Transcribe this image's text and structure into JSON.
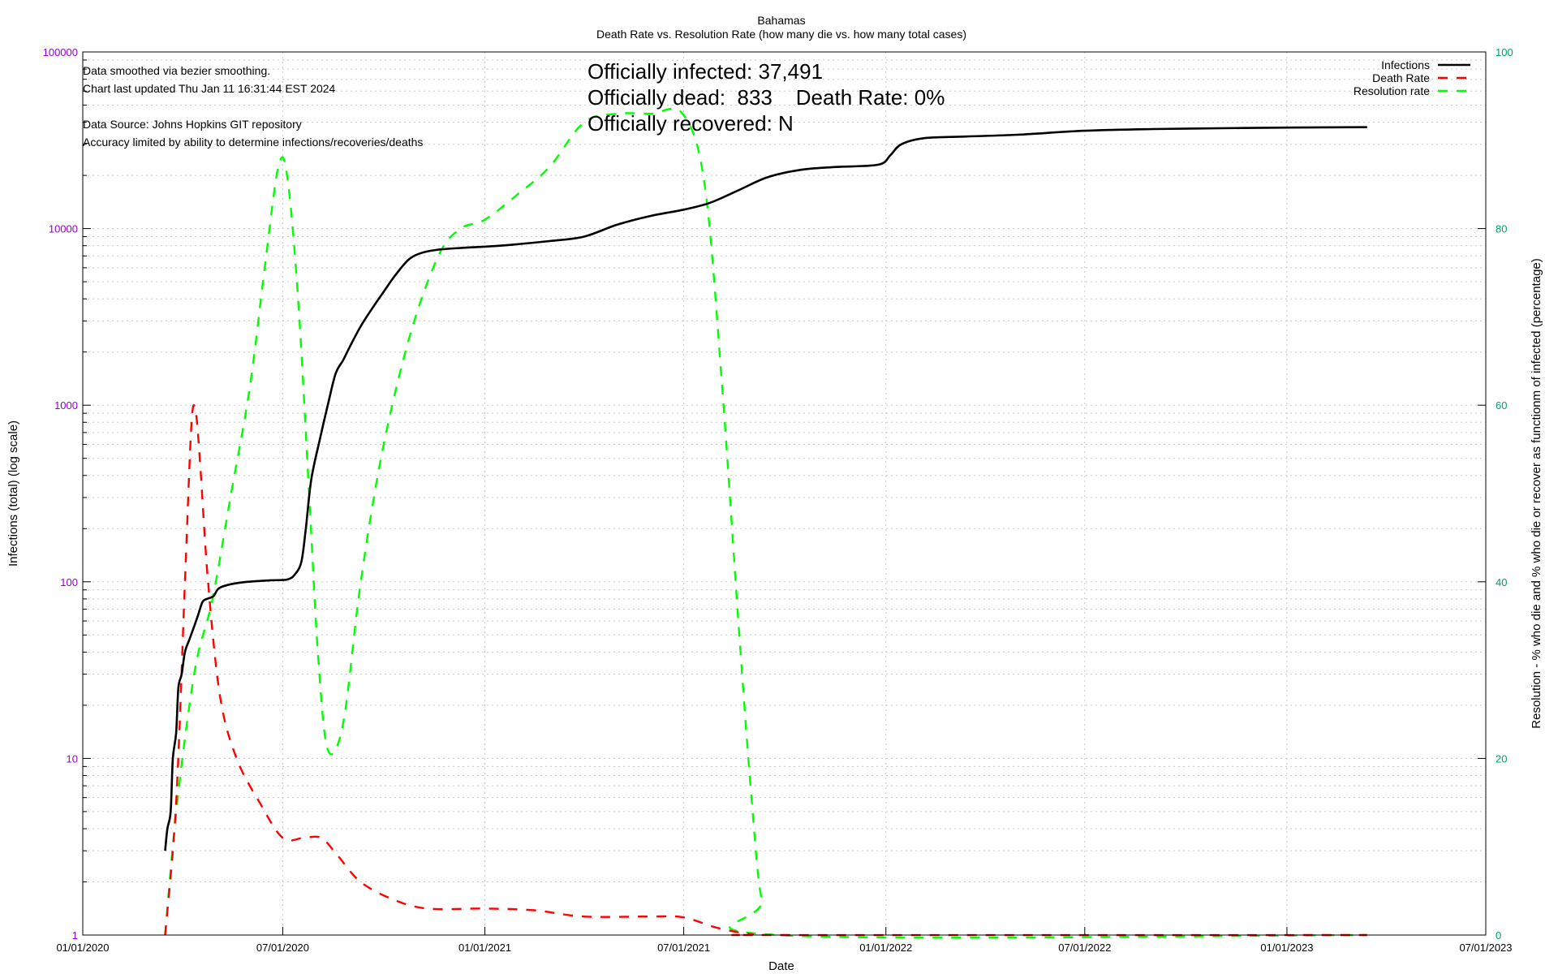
{
  "chart_data": {
    "type": "line",
    "title": "Bahamas",
    "subtitle": "Death Rate vs. Resolution Rate (how many die vs. how many total cases)",
    "xlabel": "Date",
    "ylabel": "Infections (total) (log scale)",
    "y2label": "Resolution - % who die and % who die or recover as functionm of infected (percentage)",
    "xlim": [
      "2020-01-01",
      "2023-07-01"
    ],
    "ylim": [
      1,
      100000
    ],
    "yscale": "log",
    "y2lim": [
      0,
      100
    ],
    "grid": true,
    "legend_position": "top-right",
    "x_ticks": [
      "01/01/2020",
      "07/01/2020",
      "01/01/2021",
      "07/01/2021",
      "01/01/2022",
      "07/01/2022",
      "01/01/2023",
      "07/01/2023"
    ],
    "y_ticks": [
      "1",
      "10",
      "100",
      "1000",
      "10000",
      "100000"
    ],
    "y2_ticks": [
      "0",
      "20",
      "40",
      "60",
      "80",
      "100"
    ],
    "notes": [
      "Data smoothed via bezier smoothing.",
      "Chart last updated Thu Jan 11 16:31:44 EST 2024",
      "Data Source: Johns Hopkins GIT repository",
      "Accuracy limited by ability to determine infections/recoveries/deaths"
    ],
    "stats": [
      "Officially infected:  37,491",
      "Officially dead:  833    Death Rate: 0%",
      "Officially recovered:  N"
    ],
    "colors": {
      "infections": "#000000",
      "death_rate": "#ff0000",
      "resolution_rate": "#00ff00",
      "left_axis": "#9400d3",
      "right_axis": "#009e73"
    },
    "series": [
      {
        "name": "Infections",
        "axis": "left",
        "style": "solid",
        "points": [
          [
            "2020-03-16",
            3
          ],
          [
            "2020-03-18",
            4
          ],
          [
            "2020-03-21",
            5
          ],
          [
            "2020-03-23",
            10
          ],
          [
            "2020-03-26",
            14
          ],
          [
            "2020-03-28",
            25
          ],
          [
            "2020-03-31",
            30
          ],
          [
            "2020-04-03",
            40
          ],
          [
            "2020-04-07",
            47
          ],
          [
            "2020-04-11",
            55
          ],
          [
            "2020-04-15",
            65
          ],
          [
            "2020-04-19",
            77
          ],
          [
            "2020-04-23",
            80
          ],
          [
            "2020-04-29",
            83
          ],
          [
            "2020-05-04",
            92
          ],
          [
            "2020-05-15",
            97
          ],
          [
            "2020-05-30",
            100
          ],
          [
            "2020-06-20",
            102
          ],
          [
            "2020-07-05",
            103
          ],
          [
            "2020-07-12",
            110
          ],
          [
            "2020-07-18",
            130
          ],
          [
            "2020-07-22",
            200
          ],
          [
            "2020-07-27",
            380
          ],
          [
            "2020-08-04",
            650
          ],
          [
            "2020-08-11",
            1000
          ],
          [
            "2020-08-18",
            1500
          ],
          [
            "2020-08-25",
            1800
          ],
          [
            "2020-09-01",
            2200
          ],
          [
            "2020-09-10",
            2800
          ],
          [
            "2020-09-20",
            3500
          ],
          [
            "2020-10-01",
            4400
          ],
          [
            "2020-10-12",
            5500
          ],
          [
            "2020-10-24",
            6700
          ],
          [
            "2020-11-05",
            7300
          ],
          [
            "2020-11-20",
            7600
          ],
          [
            "2020-12-15",
            7800
          ],
          [
            "2021-01-15",
            8000
          ],
          [
            "2021-03-01",
            8500
          ],
          [
            "2021-04-01",
            9000
          ],
          [
            "2021-05-01",
            10500
          ],
          [
            "2021-06-01",
            11800
          ],
          [
            "2021-07-01",
            12800
          ],
          [
            "2021-07-25",
            14000
          ],
          [
            "2021-08-20",
            16500
          ],
          [
            "2021-09-15",
            19500
          ],
          [
            "2021-10-15",
            21500
          ],
          [
            "2021-11-15",
            22300
          ],
          [
            "2021-12-25",
            23000
          ],
          [
            "2022-01-05",
            26000
          ],
          [
            "2022-01-15",
            30000
          ],
          [
            "2022-02-05",
            32500
          ],
          [
            "2022-03-15",
            33200
          ],
          [
            "2022-05-01",
            34000
          ],
          [
            "2022-07-01",
            35800
          ],
          [
            "2022-09-01",
            36600
          ],
          [
            "2022-11-01",
            37000
          ],
          [
            "2023-01-01",
            37300
          ],
          [
            "2023-03-15",
            37491
          ]
        ]
      },
      {
        "name": "Death Rate",
        "axis": "right",
        "style": "dashed",
        "points": [
          [
            "2020-03-16",
            0
          ],
          [
            "2020-03-26",
            15
          ],
          [
            "2020-04-03",
            40
          ],
          [
            "2020-04-09",
            58
          ],
          [
            "2020-04-13",
            59
          ],
          [
            "2020-04-17",
            53
          ],
          [
            "2020-04-24",
            40
          ],
          [
            "2020-05-05",
            27
          ],
          [
            "2020-05-20",
            20
          ],
          [
            "2020-06-10",
            15
          ],
          [
            "2020-07-01",
            11
          ],
          [
            "2020-07-20",
            11
          ],
          [
            "2020-08-05",
            11
          ],
          [
            "2020-08-20",
            9
          ],
          [
            "2020-09-10",
            6
          ],
          [
            "2020-10-10",
            4
          ],
          [
            "2020-11-10",
            3
          ],
          [
            "2021-01-01",
            3
          ],
          [
            "2021-02-15",
            2.8
          ],
          [
            "2021-04-01",
            2.1
          ],
          [
            "2021-06-01",
            2.1
          ],
          [
            "2021-07-01",
            2.0
          ],
          [
            "2021-08-01",
            0.8
          ],
          [
            "2021-09-01",
            0.1
          ],
          [
            "2021-10-01",
            0
          ],
          [
            "2023-03-15",
            0
          ]
        ]
      },
      {
        "name": "Resolution rate",
        "axis": "right",
        "style": "dashed",
        "points": [
          [
            "2020-03-16",
            0
          ],
          [
            "2020-03-27",
            15
          ],
          [
            "2020-04-12",
            30
          ],
          [
            "2020-04-28",
            38
          ],
          [
            "2020-05-15",
            50
          ],
          [
            "2020-06-01",
            62
          ],
          [
            "2020-06-15",
            76
          ],
          [
            "2020-06-27",
            87
          ],
          [
            "2020-07-05",
            86
          ],
          [
            "2020-07-15",
            72
          ],
          [
            "2020-07-25",
            50
          ],
          [
            "2020-08-02",
            32
          ],
          [
            "2020-08-11",
            21
          ],
          [
            "2020-08-25",
            24
          ],
          [
            "2020-09-10",
            40
          ],
          [
            "2020-09-30",
            55
          ],
          [
            "2020-10-25",
            68
          ],
          [
            "2020-11-20",
            77
          ],
          [
            "2020-12-10",
            80
          ],
          [
            "2021-01-01",
            81
          ],
          [
            "2021-02-01",
            84
          ],
          [
            "2021-03-01",
            87
          ],
          [
            "2021-04-01",
            92
          ],
          [
            "2021-05-01",
            93
          ],
          [
            "2021-06-01",
            93
          ],
          [
            "2021-06-30",
            93
          ],
          [
            "2021-07-20",
            85
          ],
          [
            "2021-08-05",
            62
          ],
          [
            "2021-08-20",
            35
          ],
          [
            "2021-09-01",
            15
          ],
          [
            "2021-09-10",
            4
          ],
          [
            "2021-09-25",
            0
          ],
          [
            "2023-03-15",
            0
          ]
        ]
      }
    ]
  }
}
